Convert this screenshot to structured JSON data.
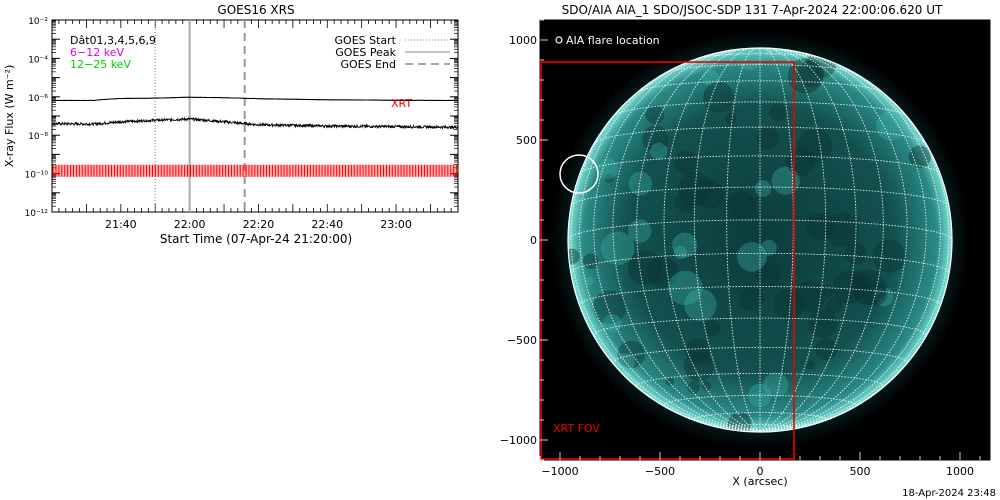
{
  "goes_chart": {
    "title": "GOES16 XRS",
    "ylabel": "X-ray Flux (W m⁻²)",
    "xlabel": "Start Time (07-Apr-24 21:20:00)",
    "legend_left": [
      "Dât01,3,4,5,6,9",
      "6−12 keV",
      "12−25 keV"
    ],
    "legend_left_colors": [
      "#000000",
      "#dd00dd",
      "#00cc00"
    ],
    "legend_right": [
      "GOES Start",
      "GOES Peak",
      "GOES End"
    ],
    "xrt_label": "XRT"
  },
  "aia_image": {
    "title": "SDO/AIA AIA_1 SDO/JSOC-SDP 131  7-Apr-2024 22:00:06.620 UT",
    "legend": "AIA flare location",
    "fov_label": "XRT FOV",
    "xlabel": "X (arcsec)",
    "footer": "18-Apr-2024 23:48"
  },
  "chart_data": [
    {
      "type": "line",
      "title": "GOES16 XRS",
      "xlabel": "Start Time (07-Apr-24 21:20:00)",
      "ylabel": "X-ray Flux (W m⁻²)",
      "yscale": "log",
      "ylim": [
        1e-12,
        0.01
      ],
      "xlim": [
        "21:20",
        "23:18"
      ],
      "x_ticks": [
        "21:40",
        "22:00",
        "22:20",
        "22:40",
        "23:00"
      ],
      "y_ticks": [
        "10⁻¹²",
        "10⁻¹⁰",
        "10⁻⁸",
        "10⁻⁶",
        "10⁻⁴",
        "10⁻²"
      ],
      "y_tick_exponents": [
        -12,
        -10,
        -8,
        -6,
        -4,
        -2
      ],
      "series": [
        {
          "name": "6−12 keV",
          "x": [
            "21:20",
            "21:32",
            "21:36",
            "21:40",
            "21:50",
            "22:00",
            "22:10",
            "22:20",
            "22:40",
            "23:00",
            "23:18"
          ],
          "y": [
            6.5e-07,
            6.5e-07,
            7.5e-07,
            8.2e-07,
            8.5e-07,
            9.5e-07,
            9e-07,
            8e-07,
            7e-07,
            6.6e-07,
            6.5e-07
          ]
        },
        {
          "name": "12−25 keV",
          "x": [
            "21:20",
            "21:32",
            "21:40",
            "21:50",
            "22:00",
            "22:10",
            "22:20",
            "22:40",
            "23:00",
            "23:18"
          ],
          "y": [
            4e-08,
            3.8e-08,
            5e-08,
            6e-08,
            7e-08,
            5e-08,
            3.5e-08,
            3e-08,
            2.8e-08,
            2.6e-08
          ]
        }
      ],
      "xrt_flux": 1.4e-10,
      "markers": {
        "goes_start": "21:50",
        "goes_peak": "22:00",
        "goes_end": "22:16"
      },
      "grid": false,
      "legend_position": "top-right"
    },
    {
      "type": "scatter",
      "title": "SDO/AIA AIA_1 SDO/JSOC-SDP 131  7-Apr-2024 22:00:06.620 UT",
      "xlabel": "X (arcsec)",
      "xlim": [
        -1100,
        1150
      ],
      "ylim": [
        -1100,
        1100
      ],
      "x_ticks": [
        -1000,
        -500,
        0,
        500,
        1000
      ],
      "y_ticks": [
        -1000,
        -500,
        0,
        500,
        1000
      ],
      "solar_radius_arcsec": 960,
      "flare_location": {
        "x": -905,
        "y": 330,
        "radius": 95
      },
      "xrt_fov": {
        "x0": -1100,
        "x1": 170,
        "y0": -1100,
        "y1": 890
      },
      "grid": true
    }
  ]
}
